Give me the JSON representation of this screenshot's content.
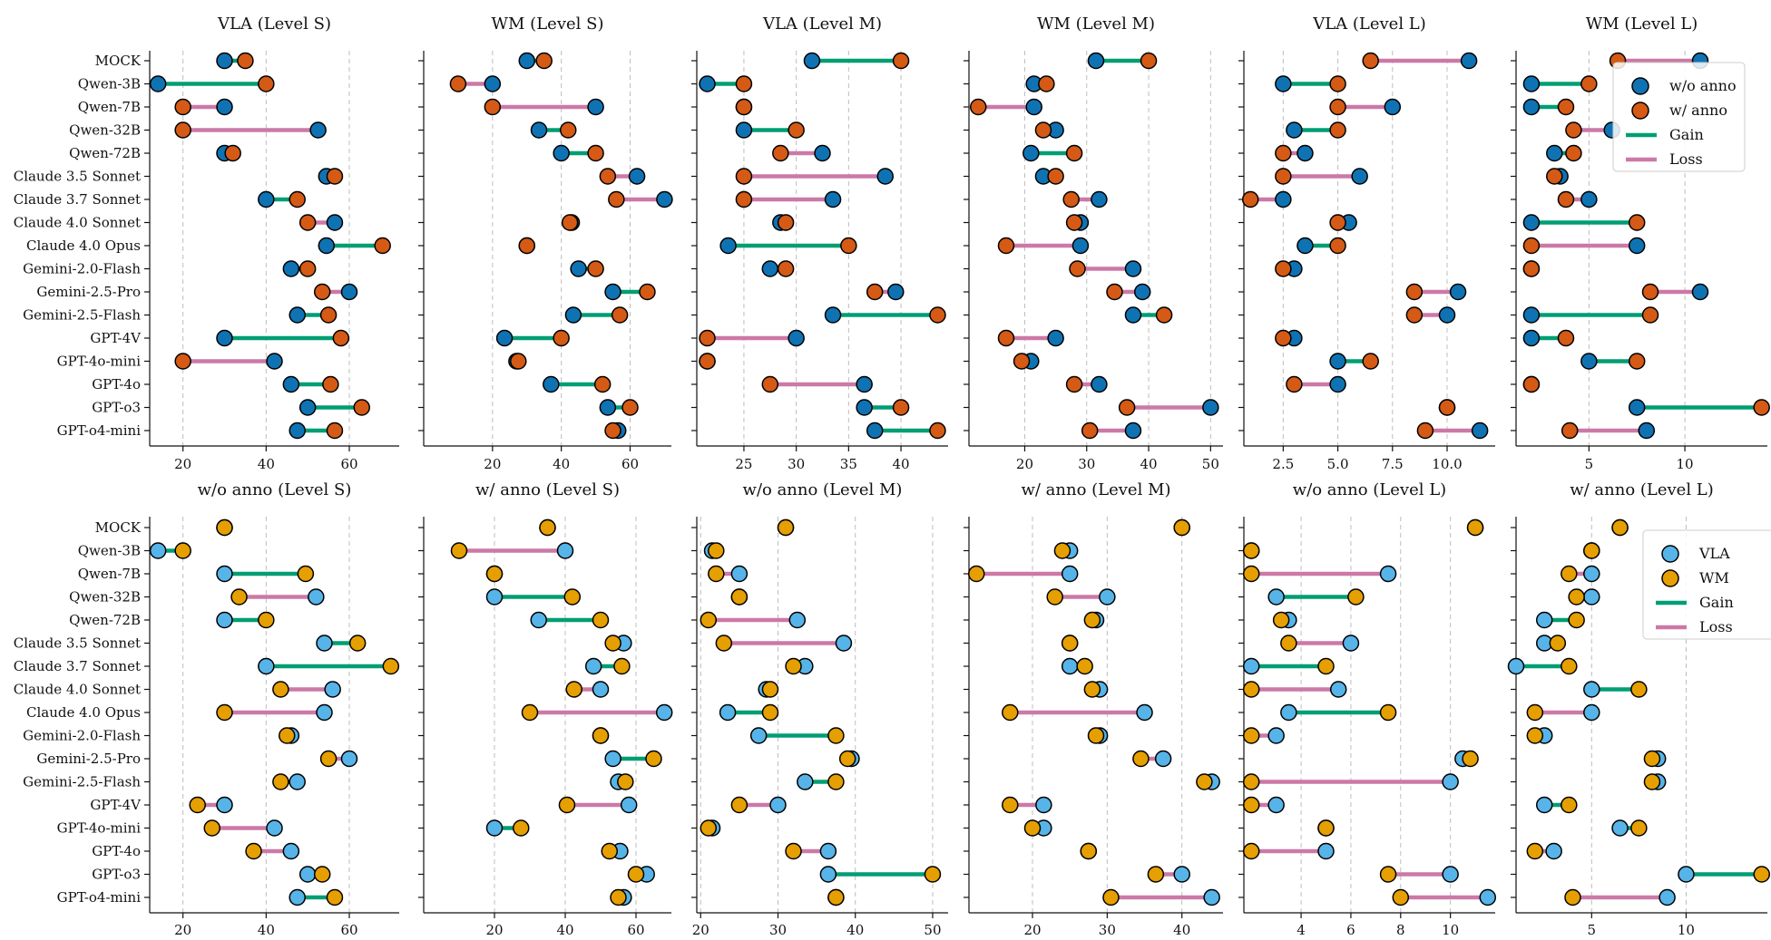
{
  "colors": {
    "wo_anno": "#0f73b3",
    "w_anno": "#d45a15",
    "vla": "#56b4e9",
    "wm": "#e69f00",
    "gain": "#009e73",
    "loss": "#cc79a7"
  },
  "legends": [
    {
      "items": [
        {
          "label": "w/o anno",
          "kind": "marker",
          "color_key": "wo_anno"
        },
        {
          "label": "w/ anno",
          "kind": "marker",
          "color_key": "w_anno"
        },
        {
          "label": "Gain",
          "kind": "line",
          "color_key": "gain"
        },
        {
          "label": "Loss",
          "kind": "line",
          "color_key": "loss"
        }
      ]
    },
    {
      "items": [
        {
          "label": "VLA",
          "kind": "marker",
          "color_key": "vla"
        },
        {
          "label": "WM",
          "kind": "marker",
          "color_key": "wm"
        },
        {
          "label": "Gain",
          "kind": "line",
          "color_key": "gain"
        },
        {
          "label": "Loss",
          "kind": "line",
          "color_key": "loss"
        }
      ]
    }
  ],
  "chart_data": {
    "type": "dumbbell",
    "categories": [
      "MOCK",
      "Qwen-3B",
      "Qwen-7B",
      "Qwen-32B",
      "Qwen-72B",
      "Claude 3.5 Sonnet",
      "Claude 3.7 Sonnet",
      "Claude 4.0 Sonnet",
      "Claude 4.0 Opus",
      "Gemini-2.0-Flash",
      "Gemini-2.5-Pro",
      "Gemini-2.5-Flash",
      "GPT-4V",
      "GPT-4o-mini",
      "GPT-4o",
      "GPT-o3",
      "GPT-o4-mini"
    ],
    "panels": [
      {
        "title": "VLA (Level S)",
        "row": 0,
        "legend": null,
        "xlim": [
          12,
          72
        ],
        "xticks": [
          20,
          40,
          60
        ],
        "xticklabels": [
          "20",
          "40",
          "60"
        ],
        "start_name": "w/o anno",
        "end_name": "w/ anno",
        "start": [
          30,
          14,
          30,
          52.5,
          30,
          54.5,
          40,
          56.5,
          54.5,
          46,
          60,
          47.5,
          30,
          42,
          46,
          50,
          47.5
        ],
        "end": [
          35,
          40,
          20,
          20,
          32,
          56.5,
          47.5,
          50,
          68,
          50,
          53.5,
          55,
          58,
          20,
          55.5,
          63,
          56.5
        ]
      },
      {
        "title": "WM (Level S)",
        "row": 0,
        "legend": null,
        "xlim": [
          0,
          72
        ],
        "xticks": [
          20,
          40,
          60
        ],
        "xticklabels": [
          "20",
          "40",
          "60"
        ],
        "start_name": "w/o anno",
        "end_name": "w/ anno",
        "start": [
          30,
          20,
          50,
          33.5,
          40,
          62,
          70,
          43,
          30,
          45,
          55,
          43.5,
          23.5,
          27,
          37,
          53.5,
          56.5
        ],
        "end": [
          35,
          10,
          20,
          42,
          50,
          53.5,
          56,
          42.5,
          30,
          50,
          65,
          57,
          40,
          27.5,
          52,
          60,
          55
        ]
      },
      {
        "title": "VLA (Level M)",
        "row": 0,
        "legend": null,
        "xlim": [
          20.5,
          44.5
        ],
        "xticks": [
          25,
          30,
          35,
          40
        ],
        "xticklabels": [
          "25",
          "30",
          "35",
          "40"
        ],
        "start_name": "w/o anno",
        "end_name": "w/ anno",
        "start": [
          31.5,
          21.5,
          25,
          25,
          32.5,
          38.5,
          33.5,
          28.5,
          23.5,
          27.5,
          39.5,
          33.5,
          30,
          21.5,
          36.5,
          36.5,
          37.5
        ],
        "end": [
          40,
          25,
          25,
          30,
          28.5,
          25,
          25,
          29,
          35,
          29,
          37.5,
          43.5,
          21.5,
          21.5,
          27.5,
          40,
          43.5
        ]
      },
      {
        "title": "WM (Level M)",
        "row": 0,
        "legend": null,
        "xlim": [
          11,
          52
        ],
        "xticks": [
          20,
          30,
          40,
          50
        ],
        "xticklabels": [
          "20",
          "30",
          "40",
          "50"
        ],
        "start_name": "w/o anno",
        "end_name": "w/ anno",
        "start": [
          31.5,
          21.5,
          21.5,
          25,
          21,
          23,
          32,
          29,
          29,
          37.5,
          39,
          37.5,
          25,
          21,
          32,
          50,
          37.5
        ],
        "end": [
          40,
          23.5,
          12.5,
          23,
          28,
          25,
          27.5,
          28,
          17,
          28.5,
          34.5,
          42.5,
          17,
          19.5,
          28,
          36.5,
          30.5
        ]
      },
      {
        "title": "VLA (Level L)",
        "row": 0,
        "legend": null,
        "xlim": [
          0.7,
          12.2
        ],
        "xticks": [
          2.5,
          5.0,
          7.5,
          10.0
        ],
        "xticklabels": [
          "2.5",
          "5.0",
          "7.5",
          "10.0"
        ],
        "start_name": "w/o anno",
        "end_name": "w/ anno",
        "start": [
          11,
          2.5,
          7.5,
          3,
          3.5,
          6,
          2.5,
          5.5,
          3.5,
          3,
          10.5,
          10,
          3,
          5,
          5,
          10,
          11.5
        ],
        "end": [
          6.5,
          5,
          5,
          5,
          2.5,
          2.5,
          1,
          5,
          5,
          2.5,
          8.5,
          8.5,
          2.5,
          6.5,
          3,
          10,
          9
        ]
      },
      {
        "title": "WM (Level L)",
        "row": 0,
        "legend": 0,
        "xlim": [
          1.2,
          14.3
        ],
        "xticks": [
          5,
          10
        ],
        "xticklabels": [
          "5",
          "10"
        ],
        "start_name": "w/o anno",
        "end_name": "w/ anno",
        "start": [
          10.8,
          2,
          2,
          6.2,
          3.2,
          3.5,
          5,
          2,
          7.5,
          2,
          10.8,
          2,
          2,
          5,
          2,
          7.5,
          8
        ],
        "end": [
          6.5,
          5,
          3.8,
          4.2,
          4.2,
          3.2,
          3.8,
          7.5,
          2,
          2,
          8.2,
          8.2,
          3.8,
          7.5,
          2,
          14,
          4
        ]
      },
      {
        "title": "w/o anno (Level S)",
        "row": 1,
        "legend": null,
        "xlim": [
          12,
          72
        ],
        "xticks": [
          20,
          40,
          60
        ],
        "xticklabels": [
          "20",
          "40",
          "60"
        ],
        "start_name": "VLA",
        "end_name": "WM",
        "start": [
          30,
          14,
          30,
          52,
          30,
          54,
          40,
          56,
          54,
          46,
          60,
          47.5,
          30,
          42,
          46,
          50,
          47.5
        ],
        "end": [
          30,
          20,
          49.5,
          33.5,
          40,
          62,
          70,
          43.5,
          30,
          45,
          55,
          43.5,
          23.5,
          27,
          37,
          53.5,
          56.5
        ]
      },
      {
        "title": "w/ anno (Level S)",
        "row": 1,
        "legend": null,
        "xlim": [
          0,
          70
        ],
        "xticks": [
          20,
          40,
          60
        ],
        "xticklabels": [
          "20",
          "40",
          "60"
        ],
        "start_name": "VLA",
        "end_name": "WM",
        "start": [
          35,
          40,
          20,
          20,
          32.5,
          56.5,
          48,
          50,
          68,
          50,
          53.5,
          55,
          58,
          20,
          55.5,
          63,
          56.5
        ],
        "end": [
          35,
          10,
          20,
          42,
          50,
          53.5,
          56,
          42.5,
          30,
          50,
          65,
          57,
          40.5,
          27.5,
          52.5,
          60,
          55
        ]
      },
      {
        "title": "w/o anno (Level M)",
        "row": 1,
        "legend": null,
        "xlim": [
          19.5,
          52
        ],
        "xticks": [
          20,
          30,
          40,
          50
        ],
        "xticklabels": [
          "20",
          "30",
          "40",
          "50"
        ],
        "start_name": "VLA",
        "end_name": "WM",
        "start": [
          31,
          21.5,
          25,
          25,
          32.5,
          38.5,
          33.5,
          28.5,
          23.5,
          27.5,
          39.5,
          33.5,
          30,
          21.5,
          36.5,
          36.5,
          37.5
        ],
        "end": [
          31,
          22,
          22,
          25,
          21,
          23,
          32,
          29,
          29,
          37.5,
          39,
          37.5,
          25,
          21,
          32,
          50,
          37.5
        ]
      },
      {
        "title": "w/ anno (Level M)",
        "row": 1,
        "legend": null,
        "xlim": [
          11.5,
          45.5
        ],
        "xticks": [
          20,
          30,
          40
        ],
        "xticklabels": [
          "20",
          "30",
          "40"
        ],
        "start_name": "VLA",
        "end_name": "WM",
        "start": [
          40,
          25,
          25,
          30,
          28.5,
          25,
          25,
          29,
          35,
          29,
          37.5,
          44,
          21.5,
          21.5,
          27.5,
          40,
          44
        ],
        "end": [
          40,
          24,
          12.5,
          23,
          28,
          25,
          27,
          28,
          17,
          28.5,
          34.5,
          43,
          17,
          20,
          27.5,
          36.5,
          30.5
        ]
      },
      {
        "title": "w/o anno (Level L)",
        "row": 1,
        "legend": null,
        "xlim": [
          1.7,
          11.8
        ],
        "xticks": [
          4,
          6,
          8,
          10
        ],
        "xticklabels": [
          "4",
          "6",
          "8",
          "10"
        ],
        "start_name": "VLA",
        "end_name": "WM",
        "start": [
          11,
          2,
          7.5,
          3,
          3.5,
          6,
          2,
          5.5,
          3.5,
          3,
          10.5,
          10,
          3,
          5,
          5,
          10,
          11.5
        ],
        "end": [
          11,
          2,
          2,
          6.2,
          3.2,
          3.5,
          5,
          2,
          7.5,
          2,
          10.8,
          2,
          2,
          5,
          2,
          7.5,
          8
        ]
      },
      {
        "title": "w/ anno (Level L)",
        "row": 1,
        "legend": 1,
        "xlim": [
          1.0,
          14.3
        ],
        "xticks": [
          5,
          10
        ],
        "xticklabels": [
          "5",
          "10"
        ],
        "start_name": "VLA",
        "end_name": "WM",
        "start": [
          6.5,
          5,
          5,
          5,
          2.5,
          2.5,
          1,
          5,
          5,
          2.5,
          8.5,
          8.5,
          2.5,
          6.5,
          3,
          10,
          9
        ]
      }
    ]
  }
}
